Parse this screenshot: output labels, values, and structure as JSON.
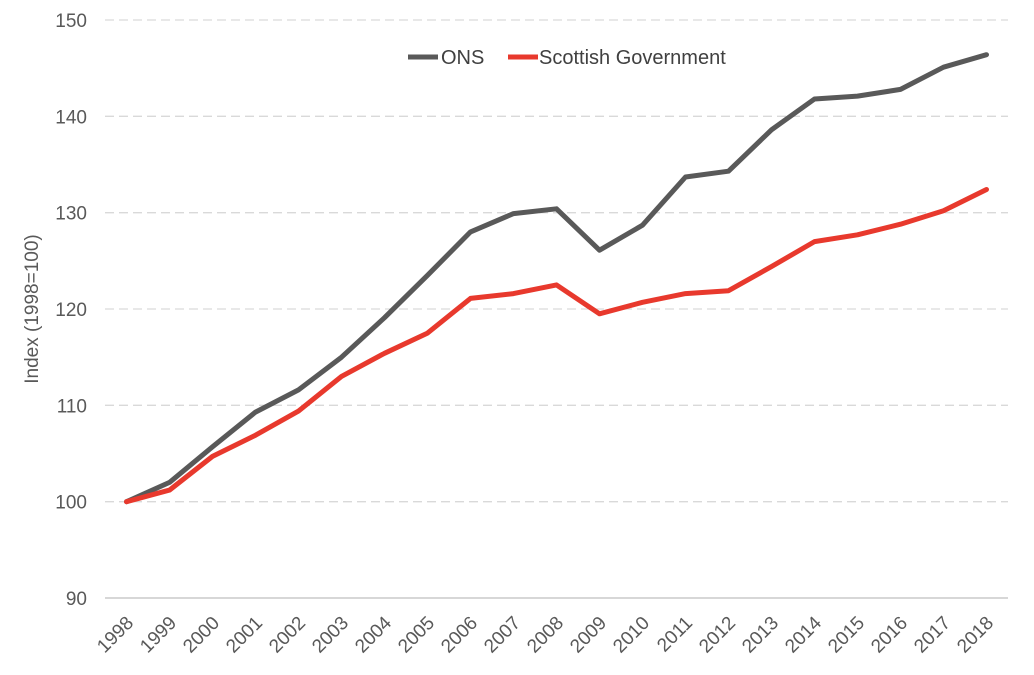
{
  "chart_data": {
    "type": "line",
    "title": "",
    "xlabel": "",
    "ylabel": "Index (1998=100)",
    "ylim": [
      90,
      150
    ],
    "yticks": [
      90,
      100,
      110,
      120,
      130,
      140,
      150
    ],
    "categories": [
      "1998",
      "1999",
      "2000",
      "2001",
      "2002",
      "2003",
      "2004",
      "2005",
      "2006",
      "2007",
      "2008",
      "2009",
      "2010",
      "2011",
      "2012",
      "2013",
      "2014",
      "2015",
      "2016",
      "2017",
      "2018"
    ],
    "grid": "horizontal-dashed",
    "legend_position": "top-center",
    "series": [
      {
        "name": "ONS",
        "color": "#595959",
        "values": [
          100.0,
          102.0,
          105.7,
          109.3,
          111.6,
          115.0,
          119.1,
          123.5,
          128.0,
          129.9,
          130.4,
          126.1,
          128.7,
          133.7,
          134.3,
          138.6,
          141.8,
          142.1,
          142.8,
          145.1,
          146.4
        ]
      },
      {
        "name": "Scottish Government",
        "color": "#e8392d",
        "values": [
          100.0,
          101.2,
          104.7,
          106.9,
          109.4,
          113.0,
          115.4,
          117.5,
          121.1,
          121.6,
          122.5,
          119.5,
          120.7,
          121.6,
          121.9,
          124.4,
          127.0,
          127.7,
          128.8,
          130.2,
          132.4
        ]
      }
    ]
  }
}
